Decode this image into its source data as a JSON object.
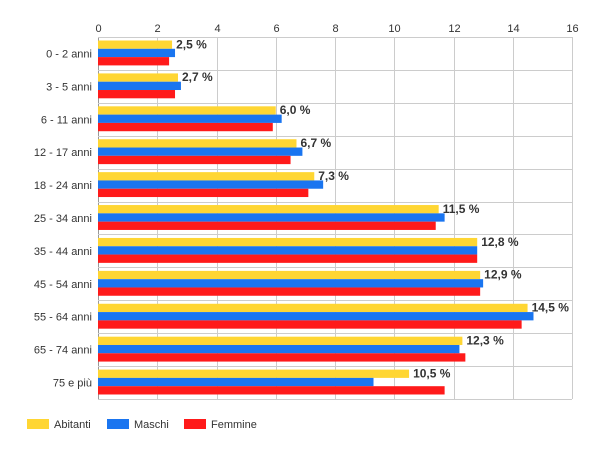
{
  "chart_data": {
    "type": "bar",
    "orientation": "horizontal",
    "categories": [
      "0 - 2 anni",
      "3 - 5 anni",
      "6 - 11 anni",
      "12 - 17 anni",
      "18 - 24 anni",
      "25 - 34 anni",
      "35 - 44 anni",
      "45 - 54 anni",
      "55 - 64 anni",
      "65 - 74 anni",
      "75 e più"
    ],
    "series": [
      {
        "name": "Abitanti",
        "color": "#ffd633",
        "values": [
          2.5,
          2.7,
          6.0,
          6.7,
          7.3,
          11.5,
          12.8,
          12.9,
          14.5,
          12.3,
          10.5
        ]
      },
      {
        "name": "Maschi",
        "color": "#1a75f0",
        "values": [
          2.6,
          2.8,
          6.2,
          6.9,
          7.6,
          11.7,
          12.8,
          13.0,
          14.7,
          12.2,
          9.3
        ]
      },
      {
        "name": "Femmine",
        "color": "#ff1a1a",
        "values": [
          2.4,
          2.6,
          5.9,
          6.5,
          7.1,
          11.4,
          12.8,
          12.9,
          14.3,
          12.4,
          11.7
        ]
      }
    ],
    "data_labels": [
      "2,5 %",
      "2,7 %",
      "6,0 %",
      "6,7 %",
      "7,3 %",
      "11,5 %",
      "12,8 %",
      "12,9 %",
      "14,5 %",
      "12,3 %",
      "10,5 %"
    ],
    "xlim": [
      0,
      16
    ],
    "xticks": [
      0,
      2,
      4,
      6,
      8,
      10,
      12,
      14,
      16
    ],
    "title": "",
    "xlabel": "",
    "ylabel": "",
    "grid": true,
    "legend_position": "bottom-left"
  }
}
